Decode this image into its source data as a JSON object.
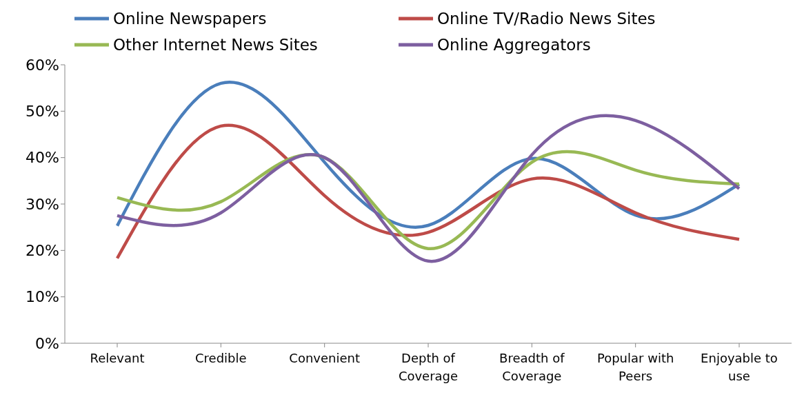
{
  "chart_data": {
    "type": "line",
    "categories": [
      "Relevant",
      "Credible",
      "Convenient",
      "Depth of Coverage",
      "Breadth of Coverage",
      "Popular with Peers",
      "Enjoyable to use"
    ],
    "series": [
      {
        "name": "Online Newspapers",
        "color": "#4a7ebb",
        "values": [
          25.3,
          56,
          39,
          25.4,
          39.8,
          27.6,
          34.3
        ]
      },
      {
        "name": "Online TV/Radio News Sites",
        "color": "#be4b48",
        "values": [
          18.3,
          46.8,
          31.8,
          23.9,
          35.4,
          28.1,
          22.4
        ]
      },
      {
        "name": "Other Internet News Sites",
        "color": "#98b954",
        "values": [
          31.4,
          30.5,
          40,
          20.4,
          39,
          37.3,
          34.3
        ]
      },
      {
        "name": "Online Aggregators",
        "color": "#7d5fa0",
        "values": [
          27.5,
          28.1,
          40,
          17.7,
          40.6,
          48,
          33.3
        ]
      }
    ],
    "ylim": [
      0,
      60
    ],
    "yticks": [
      {
        "value": 0,
        "label": "0%"
      },
      {
        "value": 10,
        "label": "10%"
      },
      {
        "value": 20,
        "label": "20%"
      },
      {
        "value": 30,
        "label": "30%"
      },
      {
        "value": 40,
        "label": "40%"
      },
      {
        "value": 50,
        "label": "50%"
      },
      {
        "value": 60,
        "label": "60%"
      }
    ],
    "grid": false,
    "legend": "top",
    "marker": "none",
    "line_style": "solid"
  }
}
